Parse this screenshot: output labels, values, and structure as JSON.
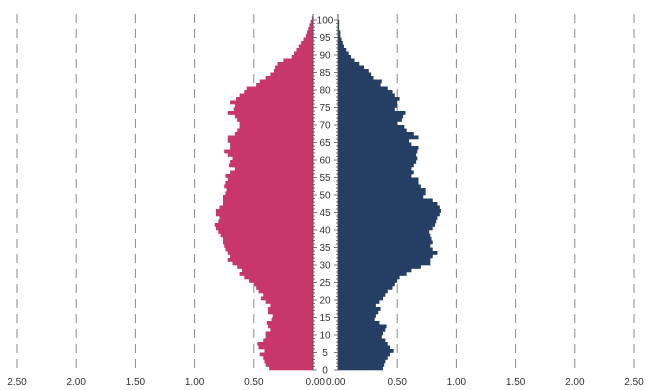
{
  "chart_data": {
    "type": "bar",
    "orientation": "horizontal",
    "subtype": "population-pyramid",
    "unit": "%",
    "age_ticks": [
      "0",
      "5",
      "10",
      "15",
      "20",
      "25",
      "30",
      "35",
      "40",
      "45",
      "50",
      "55",
      "60",
      "65",
      "70",
      "75",
      "80",
      "85",
      "90",
      "95",
      "100"
    ],
    "x_tick_labels_left": [
      "2.50",
      "2.00",
      "1.50",
      "1.00",
      "0.50",
      "0.00"
    ],
    "x_tick_labels_right": [
      "0.00",
      "0.50",
      "1.00",
      "1.50",
      "2.00",
      "2.50"
    ],
    "xlim": [
      0,
      2.5
    ],
    "ylim": [
      0,
      100
    ],
    "grid": "vertical dashed",
    "colors": {
      "left": "#C8366A",
      "right": "#243F63",
      "grid": "#8a8a8a",
      "axis": "#555555"
    },
    "ages": [
      0,
      1,
      2,
      3,
      4,
      5,
      6,
      7,
      8,
      9,
      10,
      11,
      12,
      13,
      14,
      15,
      16,
      17,
      18,
      19,
      20,
      21,
      22,
      23,
      24,
      25,
      26,
      27,
      28,
      29,
      30,
      31,
      32,
      33,
      34,
      35,
      36,
      37,
      38,
      39,
      40,
      41,
      42,
      43,
      44,
      45,
      46,
      47,
      48,
      49,
      50,
      51,
      52,
      53,
      54,
      55,
      56,
      57,
      58,
      59,
      60,
      61,
      62,
      63,
      64,
      65,
      66,
      67,
      68,
      69,
      70,
      71,
      72,
      73,
      74,
      75,
      76,
      77,
      78,
      79,
      80,
      81,
      82,
      83,
      84,
      85,
      86,
      87,
      88,
      89,
      90,
      91,
      92,
      93,
      94,
      95,
      96,
      97,
      98,
      99,
      100
    ],
    "series": [
      {
        "side": "left",
        "values": [
          0.37,
          0.4,
          0.41,
          0.42,
          0.45,
          0.41,
          0.46,
          0.47,
          0.42,
          0.4,
          0.4,
          0.36,
          0.38,
          0.39,
          0.35,
          0.34,
          0.38,
          0.38,
          0.36,
          0.4,
          0.44,
          0.42,
          0.46,
          0.48,
          0.5,
          0.54,
          0.58,
          0.62,
          0.6,
          0.64,
          0.68,
          0.72,
          0.7,
          0.72,
          0.74,
          0.75,
          0.76,
          0.76,
          0.78,
          0.8,
          0.82,
          0.83,
          0.8,
          0.79,
          0.82,
          0.82,
          0.79,
          0.76,
          0.76,
          0.76,
          0.74,
          0.73,
          0.75,
          0.74,
          0.72,
          0.74,
          0.7,
          0.66,
          0.71,
          0.7,
          0.68,
          0.72,
          0.75,
          0.7,
          0.7,
          0.72,
          0.72,
          0.66,
          0.64,
          0.62,
          0.62,
          0.64,
          0.66,
          0.72,
          0.67,
          0.66,
          0.7,
          0.65,
          0.62,
          0.58,
          0.56,
          0.48,
          0.45,
          0.4,
          0.36,
          0.33,
          0.32,
          0.3,
          0.25,
          0.18,
          0.16,
          0.14,
          0.12,
          0.1,
          0.08,
          0.06,
          0.05,
          0.04,
          0.03,
          0.02,
          0.01
        ]
      },
      {
        "side": "right",
        "values": [
          0.38,
          0.39,
          0.4,
          0.42,
          0.44,
          0.47,
          0.44,
          0.42,
          0.4,
          0.37,
          0.38,
          0.4,
          0.41,
          0.35,
          0.31,
          0.32,
          0.34,
          0.36,
          0.32,
          0.35,
          0.38,
          0.4,
          0.42,
          0.46,
          0.48,
          0.5,
          0.52,
          0.58,
          0.62,
          0.7,
          0.78,
          0.78,
          0.8,
          0.84,
          0.8,
          0.78,
          0.8,
          0.79,
          0.78,
          0.77,
          0.8,
          0.82,
          0.83,
          0.84,
          0.86,
          0.87,
          0.86,
          0.84,
          0.8,
          0.72,
          0.74,
          0.74,
          0.7,
          0.68,
          0.68,
          0.62,
          0.64,
          0.62,
          0.64,
          0.66,
          0.67,
          0.66,
          0.67,
          0.68,
          0.62,
          0.6,
          0.68,
          0.64,
          0.58,
          0.56,
          0.5,
          0.54,
          0.55,
          0.57,
          0.48,
          0.5,
          0.5,
          0.52,
          0.48,
          0.46,
          0.42,
          0.36,
          0.37,
          0.3,
          0.28,
          0.26,
          0.22,
          0.18,
          0.14,
          0.11,
          0.09,
          0.07,
          0.05,
          0.04,
          0.03,
          0.02,
          0.02,
          0.01,
          0.01,
          0.01,
          0.0
        ]
      }
    ]
  }
}
